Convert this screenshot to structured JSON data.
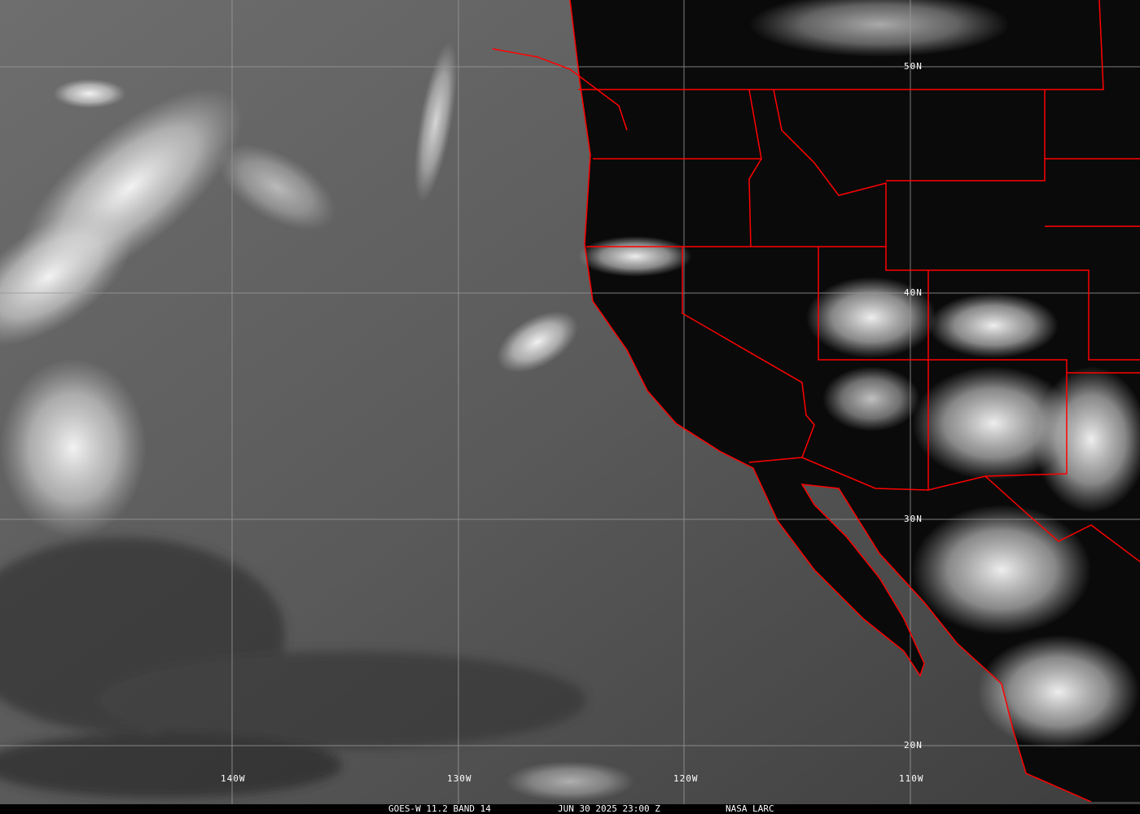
{
  "image": {
    "caption": {
      "satellite_band": "GOES-W 11.2 BAND 14",
      "datetime": "JUN 30 2025 23:00 Z",
      "credit": "NASA LARC"
    },
    "latitude_labels": [
      "50N",
      "40N",
      "30N",
      "20N"
    ],
    "longitude_labels": [
      "140W",
      "130W",
      "120W",
      "110W"
    ],
    "colors": {
      "borders": "#ff0000",
      "grid": "#9a9a9a",
      "land": "#0a0a0a",
      "ocean": "#5a5a5a",
      "clouds": "#f0f0f0"
    }
  }
}
